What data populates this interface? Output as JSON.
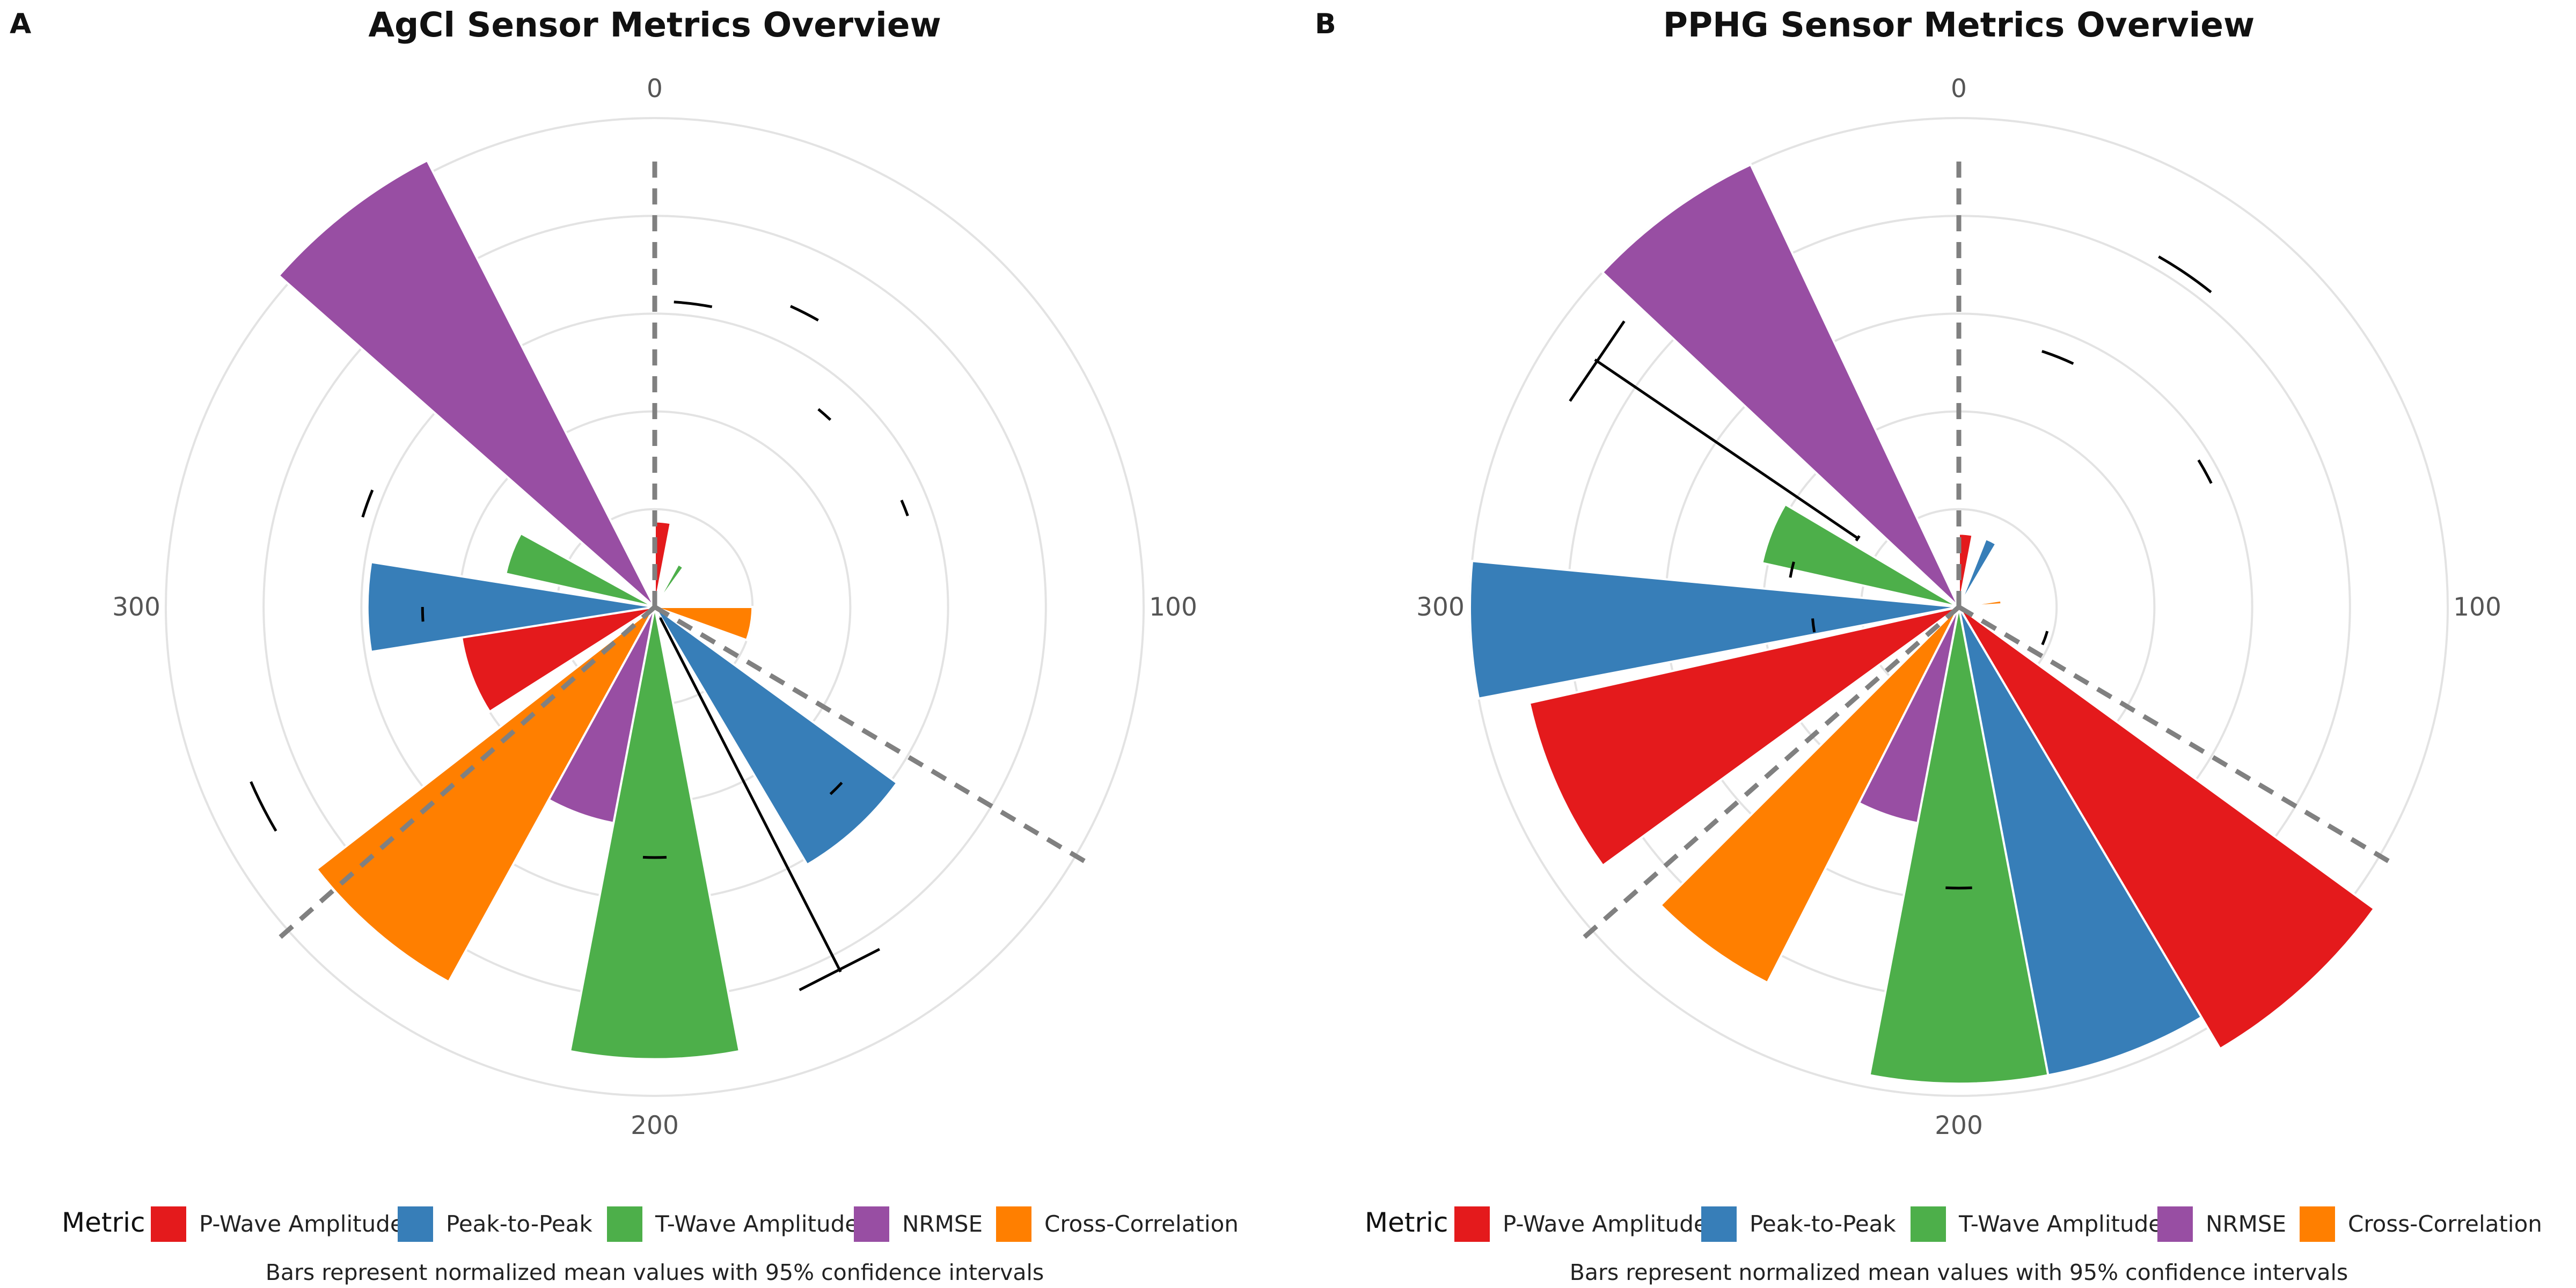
{
  "chart_data": [
    {
      "type": "polar-bar",
      "panel_label": "A",
      "title": "AgCl Sensor Metrics Overview",
      "theta_ticks": [
        "0",
        "100",
        "200",
        "300"
      ],
      "ylim": [
        0,
        40
      ],
      "bars": [
        {
          "metric": "P-Wave Amplitude",
          "value": 4.5,
          "ci_low": 14,
          "ci_high": 17
        },
        {
          "metric": "Peak-to-Peak",
          "value": 0.4,
          "ci_low": 0,
          "ci_high": 1
        },
        {
          "metric": "T-Wave Amplitude",
          "value": 3.5,
          "ci_low": 12,
          "ci_high": 13
        },
        {
          "metric": "NRMSE",
          "value": 0.2,
          "ci_low": 0,
          "ci_high": 1
        },
        {
          "metric": "Cross-Correlation",
          "value": 0.1,
          "ci_low": 16,
          "ci_high": 17
        },
        {
          "metric": "P-Wave Amplitude",
          "value": 0.3,
          "ci_low": 0,
          "ci_high": 1
        },
        {
          "metric": "Peak-to-Peak",
          "value": 0.2,
          "ci_low": 0,
          "ci_high": 1
        },
        {
          "metric": "T-Wave Amplitude",
          "value": 0.1,
          "ci_low": 0,
          "ci_high": 1
        },
        {
          "metric": "NRMSE",
          "value": 0.2,
          "ci_low": 0,
          "ci_high": 1
        },
        {
          "metric": "Cross-Correlation",
          "value": 9,
          "ci_low": 0,
          "ci_high": 1
        },
        {
          "metric": "P-Wave Amplitude",
          "value": 0.3,
          "ci_low": 0,
          "ci_high": 1
        },
        {
          "metric": "Peak-to-Peak",
          "value": 0.2,
          "ci_low": 14,
          "ci_high": 15
        },
        {
          "metric": "T-Wave Amplitude",
          "value": 0.1,
          "ci_low": 0,
          "ci_high": 1
        },
        {
          "metric": "NRMSE",
          "value": 0.2,
          "ci_low": 0,
          "ci_high": 1
        },
        {
          "metric": "Cross-Correlation",
          "value": 0.1,
          "ci_low": 0,
          "ci_high": 1
        },
        {
          "metric": "P-Wave Amplitude",
          "value": 0.3,
          "ci_low": 0,
          "ci_high": 1
        },
        {
          "metric": "Peak-to-Peak",
          "value": 20,
          "ci_low": 0,
          "ci_high": 44
        },
        {
          "metric": "T-Wave Amplitude",
          "value": 0.1,
          "ci_low": 0,
          "ci_high": 1
        },
        {
          "metric": "NRMSE",
          "value": 0.2,
          "ci_low": 0,
          "ci_high": 1
        },
        {
          "metric": "Cross-Correlation",
          "value": 0.1,
          "ci_low": 0,
          "ci_high": 1
        },
        {
          "metric": "P-Wave Amplitude",
          "value": 0.3,
          "ci_low": 0,
          "ci_high": 1
        },
        {
          "metric": "Peak-to-Peak",
          "value": 0.2,
          "ci_low": 0,
          "ci_high": 1
        },
        {
          "metric": "T-Wave Amplitude",
          "value": 37,
          "ci_low": 16.5,
          "ci_high": 17.5
        },
        {
          "metric": "NRMSE",
          "value": 0.2,
          "ci_low": 0,
          "ci_high": 1
        },
        {
          "metric": "Cross-Correlation",
          "value": 0.1,
          "ci_low": 0,
          "ci_high": 1
        },
        {
          "metric": "P-Wave Amplitude",
          "value": 0.3,
          "ci_low": 0,
          "ci_high": 1
        },
        {
          "metric": "Peak-to-Peak",
          "value": 0.2,
          "ci_low": 0,
          "ci_high": 1
        },
        {
          "metric": "T-Wave Amplitude",
          "value": 0.1,
          "ci_low": 0,
          "ci_high": 1
        },
        {
          "metric": "NRMSE",
          "value": 17.5,
          "ci_low": 0,
          "ci_high": 1
        },
        {
          "metric": "Cross-Correlation",
          "value": 0.1,
          "ci_low": 0,
          "ci_high": 1
        },
        {
          "metric": "P-Wave Amplitude",
          "value": 0.3,
          "ci_low": 0,
          "ci_high": 1
        },
        {
          "metric": "Peak-to-Peak",
          "value": 0.2,
          "ci_low": 0,
          "ci_high": 1
        },
        {
          "metric": "T-Wave Amplitude",
          "value": 0.1,
          "ci_low": 0,
          "ci_high": 1
        },
        {
          "metric": "NRMSE",
          "value": 0.2,
          "ci_low": 0,
          "ci_high": 1
        },
        {
          "metric": "Cross-Correlation",
          "value": 34.5,
          "ci_low": 0,
          "ci_high": 1
        },
        {
          "metric": "P-Wave Amplitude",
          "value": 17.5,
          "ci_low": 0,
          "ci_high": 1
        },
        {
          "metric": "Peak-to-Peak",
          "value": 0.2,
          "ci_low": 0,
          "ci_high": 1
        },
        {
          "metric": "T-Wave Amplitude",
          "value": 0.1,
          "ci_low": 0,
          "ci_high": 1
        },
        {
          "metric": "NRMSE",
          "value": 0.2,
          "ci_low": 0,
          "ci_high": 1
        },
        {
          "metric": "Cross-Correlation",
          "value": 0.1,
          "ci_low": 0,
          "ci_high": 1
        },
        {
          "metric": "P-Wave Amplitude",
          "value": 0.3,
          "ci_low": 0,
          "ci_high": 1
        },
        {
          "metric": "Peak-to-Peak",
          "value": 23.5,
          "ci_low": 0,
          "ci_high": 1
        },
        {
          "metric": "T-Wave Amplitude",
          "value": 13,
          "ci_low": 0,
          "ci_high": 1
        },
        {
          "metric": "NRMSE",
          "value": 0.2,
          "ci_low": 0,
          "ci_high": 1
        },
        {
          "metric": "Cross-Correlation",
          "value": 0.1,
          "ci_low": 0,
          "ci_high": 1
        },
        {
          "metric": "P-Wave Amplitude",
          "value": 0.3,
          "ci_low": 0,
          "ci_high": 1
        },
        {
          "metric": "Peak-to-Peak",
          "value": 0.2,
          "ci_low": 0,
          "ci_high": 1
        },
        {
          "metric": "T-Wave Amplitude",
          "value": 0.1,
          "ci_low": 0,
          "ci_high": 1
        },
        {
          "metric": "NRMSE",
          "value": 0.2,
          "ci_low": 0,
          "ci_high": 1
        },
        {
          "metric": "Cross-Correlation",
          "value": 0.1,
          "ci_low": 0,
          "ci_high": 1
        },
        {
          "metric": "P-Wave Amplitude",
          "value": 0.3,
          "ci_low": 16,
          "ci_high": 17
        },
        {
          "metric": "Peak-to-Peak",
          "value": 0.2,
          "ci_low": 0,
          "ci_high": 1
        },
        {
          "metric": "T-Wave Amplitude",
          "value": 0.1,
          "ci_low": 0,
          "ci_high": 1
        },
        {
          "metric": "NRMSE",
          "value": 0.2,
          "ci_low": 0,
          "ci_high": 1
        },
        {
          "metric": "Cross-Correlation",
          "value": 0.1,
          "ci_low": 0,
          "ci_high": 1
        },
        {
          "metric": "P-Wave Amplitude",
          "value": 0.3,
          "ci_low": 0,
          "ci_high": 1
        },
        {
          "metric": "Peak-to-Peak",
          "value": 0.2,
          "ci_low": 0,
          "ci_high": 1
        },
        {
          "metric": "T-Wave Amplitude",
          "value": 0.1,
          "ci_low": 0,
          "ci_high": 1
        },
        {
          "metric": "NRMSE",
          "value": 0.2,
          "ci_low": 0,
          "ci_high": 1
        },
        {
          "metric": "Cross-Correlation",
          "value": 0.1,
          "ci_low": 0,
          "ci_high": 1
        },
        {
          "metric": "P-Wave Amplitude",
          "value": 0.3,
          "ci_low": 0,
          "ci_high": 1
        },
        {
          "metric": "Peak-to-Peak",
          "value": 0.2,
          "ci_low": 0,
          "ci_high": 1
        },
        {
          "metric": "T-Wave Amplitude",
          "value": 0.1,
          "ci_low": 0,
          "ci_high": 1
        },
        {
          "metric": "NRMSE",
          "value": 0.2,
          "ci_low": 0,
          "ci_high": 1
        },
        {
          "metric": "Cross-Correlation",
          "value": 0.1,
          "ci_low": 0,
          "ci_high": 1
        }
      ]
    },
    {
      "type": "polar-bar",
      "panel_label": "B",
      "title": "PPHG Sensor Metrics Overview",
      "theta_ticks": [
        "0",
        "100",
        "200",
        "300"
      ],
      "ylim": [
        0,
        40
      ]
    }
  ],
  "legend": {
    "title": "Metric",
    "items": [
      {
        "label": "P-Wave Amplitude",
        "color": "#e41a1c"
      },
      {
        "label": "Peak-to-Peak",
        "color": "#377eb8"
      },
      {
        "label": "T-Wave Amplitude",
        "color": "#4daf4a"
      },
      {
        "label": "NRMSE",
        "color": "#984ea3"
      },
      {
        "label": "Cross-Correlation",
        "color": "#ff7f00"
      }
    ]
  },
  "caption": "Bars represent normalized mean values with 95% confidence intervals"
}
